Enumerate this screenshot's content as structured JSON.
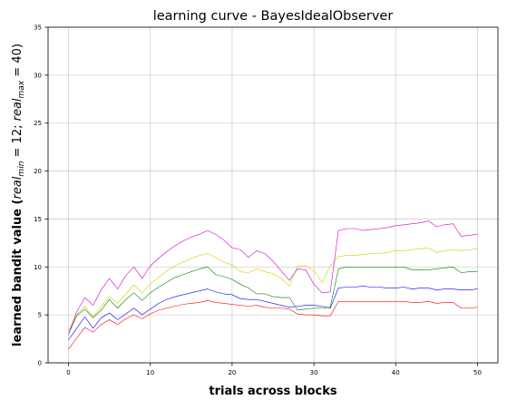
{
  "chart_data": {
    "type": "line",
    "title": "learning curve - BayesIdealObserver",
    "xlabel": "trials across blocks",
    "ylabel_main": "learned bandit value (",
    "ylabel_math": {
      "real": "real",
      "min": "min",
      "max": "max",
      "eq1": " = 12; ",
      "eq2": " = 40)"
    },
    "xlim": [
      -2.5,
      52.5
    ],
    "ylim": [
      0,
      35
    ],
    "x_ticks": [
      0,
      10,
      20,
      30,
      40,
      50
    ],
    "y_ticks": [
      0,
      5,
      10,
      15,
      20,
      25,
      30,
      35
    ],
    "grid": true,
    "x": [
      0,
      1,
      2,
      3,
      4,
      5,
      6,
      7,
      8,
      9,
      10,
      11,
      12,
      13,
      14,
      15,
      16,
      17,
      18,
      19,
      20,
      21,
      22,
      23,
      24,
      25,
      26,
      27,
      28,
      29,
      30,
      31,
      32,
      33,
      34,
      35,
      36,
      37,
      38,
      39,
      40,
      41,
      42,
      43,
      44,
      45,
      46,
      47,
      48,
      49,
      50
    ],
    "series": [
      {
        "color": "#ff0000",
        "values": [
          1.4,
          2.6,
          3.7,
          3.2,
          4.0,
          4.5,
          4.0,
          4.6,
          5.0,
          4.6,
          5.1,
          5.5,
          5.7,
          5.9,
          6.1,
          6.2,
          6.3,
          6.5,
          6.3,
          6.2,
          6.1,
          6.0,
          5.9,
          6.0,
          5.8,
          5.7,
          5.7,
          5.6,
          5.1,
          5.0,
          5.0,
          4.9,
          4.9,
          6.4,
          6.4,
          6.4,
          6.4,
          6.4,
          6.4,
          6.4,
          6.4,
          6.4,
          6.3,
          6.3,
          6.4,
          6.2,
          6.3,
          6.3,
          5.7,
          5.7,
          5.8
        ]
      },
      {
        "color": "#0000ff",
        "values": [
          2.4,
          3.6,
          4.8,
          3.6,
          4.7,
          5.2,
          4.5,
          5.1,
          5.7,
          5.0,
          5.6,
          6.2,
          6.6,
          6.9,
          7.1,
          7.3,
          7.5,
          7.7,
          7.4,
          7.2,
          7.1,
          6.7,
          6.6,
          6.6,
          6.4,
          6.2,
          6.0,
          5.8,
          5.9,
          6.0,
          6.0,
          5.9,
          5.7,
          7.8,
          7.9,
          7.9,
          8.0,
          7.9,
          7.9,
          7.8,
          7.8,
          7.9,
          7.7,
          7.8,
          7.8,
          7.6,
          7.7,
          7.7,
          7.6,
          7.6,
          7.7
        ]
      },
      {
        "color": "#008000",
        "values": [
          3.0,
          4.9,
          5.6,
          4.7,
          5.5,
          6.6,
          5.7,
          6.6,
          7.3,
          6.5,
          7.3,
          7.9,
          8.4,
          8.9,
          9.2,
          9.5,
          9.8,
          10.0,
          9.2,
          9.0,
          8.7,
          8.2,
          7.8,
          7.2,
          7.2,
          6.9,
          6.8,
          6.8,
          5.5,
          5.6,
          5.7,
          5.7,
          5.8,
          9.8,
          10.0,
          10.0,
          10.0,
          10.0,
          10.0,
          10.0,
          10.0,
          10.0,
          9.7,
          9.7,
          9.7,
          9.8,
          9.9,
          10.0,
          9.4,
          9.5,
          9.5
        ]
      },
      {
        "color": "#cccc00",
        "values": [
          3.3,
          5.0,
          5.9,
          4.8,
          5.9,
          6.9,
          6.2,
          7.2,
          8.1,
          7.3,
          8.2,
          8.9,
          9.6,
          10.1,
          10.5,
          10.9,
          11.2,
          11.4,
          11.0,
          10.5,
          10.2,
          9.5,
          9.4,
          9.8,
          9.5,
          9.3,
          8.8,
          8.0,
          10.1,
          10.1,
          9.6,
          8.4,
          10.1,
          11.1,
          11.2,
          11.2,
          11.3,
          11.4,
          11.4,
          11.5,
          11.7,
          11.7,
          11.8,
          11.9,
          12.0,
          11.5,
          11.7,
          11.8,
          11.7,
          11.8,
          11.9
        ]
      },
      {
        "color": "#cc00cc",
        "values": [
          3.0,
          5.3,
          6.8,
          6.0,
          7.6,
          8.8,
          7.7,
          9.1,
          10.0,
          8.8,
          10.1,
          10.9,
          11.6,
          12.2,
          12.7,
          13.1,
          13.4,
          13.8,
          13.4,
          12.8,
          12.0,
          11.8,
          11.0,
          11.7,
          11.4,
          10.6,
          9.6,
          8.6,
          9.8,
          9.7,
          8.2,
          7.3,
          7.4,
          13.8,
          14.0,
          14.0,
          13.8,
          13.9,
          14.0,
          14.1,
          14.3,
          14.4,
          14.5,
          14.6,
          14.8,
          14.2,
          14.4,
          14.5,
          13.2,
          13.3,
          13.4
        ]
      }
    ]
  }
}
